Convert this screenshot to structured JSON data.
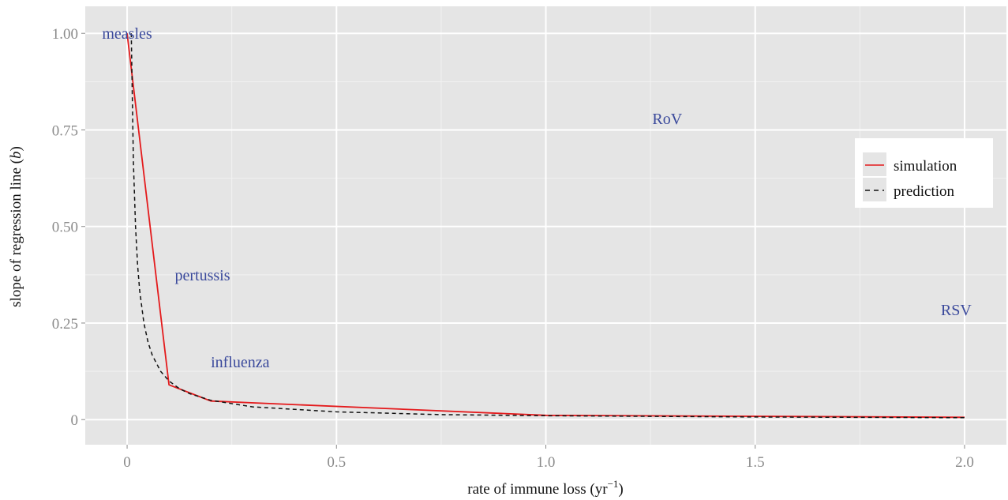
{
  "chart_data": {
    "type": "line",
    "xlabel": "rate of immune loss (yr",
    "xlabel_sup": "−1",
    "xlabel_end": ")",
    "ylabel": "slope of regression line (",
    "ylabel_italic": "b",
    "ylabel_end": ")",
    "xlim": [
      -0.1,
      2.1
    ],
    "ylim": [
      -0.065,
      1.07
    ],
    "x_ticks": [
      0,
      0.5,
      1.0,
      1.5,
      2.0
    ],
    "x_tick_labels": [
      "0",
      "0.5",
      "1.0",
      "1.5",
      "2.0"
    ],
    "y_ticks": [
      0,
      0.25,
      0.5,
      0.75,
      1.0
    ],
    "y_tick_labels": [
      "0",
      "0.25",
      "0.50",
      "0.75",
      "1.00"
    ],
    "grid": true,
    "legend_position": "right",
    "series": [
      {
        "name": "simulation",
        "color": "#e41a1c",
        "dash": "solid",
        "x": [
          0,
          0.1,
          0.2,
          1.0,
          2.0
        ],
        "y": [
          1.0,
          0.09,
          0.048,
          0.011,
          0.006
        ]
      },
      {
        "name": "prediction",
        "color": "#111111",
        "dash": "dashed",
        "x": [
          0.01,
          0.015,
          0.02,
          0.025,
          0.03,
          0.04,
          0.05,
          0.06,
          0.08,
          0.1,
          0.125,
          0.15,
          0.2,
          0.3,
          0.5,
          0.75,
          1.0,
          1.5,
          2.0
        ],
        "y": [
          1.0,
          0.667,
          0.5,
          0.4,
          0.333,
          0.25,
          0.2,
          0.167,
          0.125,
          0.1,
          0.08,
          0.067,
          0.05,
          0.033,
          0.02,
          0.013,
          0.01,
          0.0067,
          0.005
        ]
      }
    ],
    "annotations": [
      {
        "label": "measles",
        "x": 0.0,
        "y": 1.0
      },
      {
        "label": "pertussis",
        "x": 0.18,
        "y": 0.375
      },
      {
        "label": "influenza",
        "x": 0.27,
        "y": 0.15
      },
      {
        "label": "RoV",
        "x": 1.29,
        "y": 0.78
      },
      {
        "label": "RSV",
        "x": 1.98,
        "y": 0.285
      }
    ]
  }
}
